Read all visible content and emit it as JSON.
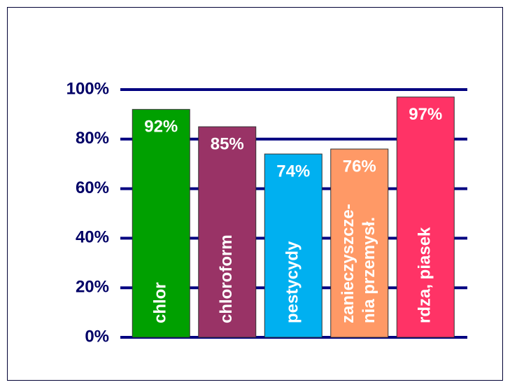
{
  "chart_data": {
    "type": "bar",
    "categories": [
      "chlor",
      "chloroform",
      "pestycydy",
      "zanieczyszcze-\nnia przemysł.",
      "rdza, piasek"
    ],
    "values": [
      92,
      85,
      74,
      76,
      97
    ],
    "value_labels": [
      "92%",
      "85%",
      "74%",
      "76%",
      "97%"
    ],
    "colors": [
      "#00a000",
      "#993366",
      "#00b0f0",
      "#ff9966",
      "#ff3366"
    ],
    "ylim": [
      0,
      100
    ],
    "yticks": [
      {
        "value": 0,
        "label": "0%"
      },
      {
        "value": 20,
        "label": "20%"
      },
      {
        "value": 40,
        "label": "40%"
      },
      {
        "value": 60,
        "label": "60%"
      },
      {
        "value": 80,
        "label": "80%"
      },
      {
        "value": 100,
        "label": "100%"
      }
    ],
    "grid": true
  }
}
